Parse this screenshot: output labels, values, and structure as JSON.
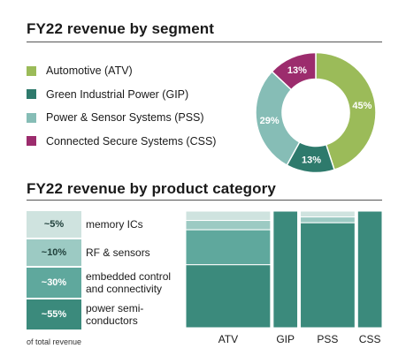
{
  "title_top": "FY22 revenue by segment",
  "title_bottom": "FY22 revenue by product category",
  "colors": {
    "ATV": "#9bbb59",
    "GIP": "#2e7a6c",
    "PSS": "#86bdb6",
    "CSS": "#9c2c6d"
  },
  "legend": [
    {
      "key": "ATV",
      "label": "Automotive (ATV)"
    },
    {
      "key": "GIP",
      "label": "Green Industrial Power (GIP)"
    },
    {
      "key": "PSS",
      "label": "Power & Sensor Systems (PSS)"
    },
    {
      "key": "CSS",
      "label": "Connected Secure Systems (CSS)"
    }
  ],
  "chart_data": [
    {
      "type": "pie",
      "title": "FY22 revenue by segment",
      "categories": [
        "ATV",
        "GIP",
        "PSS",
        "CSS"
      ],
      "values": [
        45,
        13,
        29,
        13
      ],
      "labels": [
        "45%",
        "13%",
        "29%",
        "13%"
      ]
    },
    {
      "type": "bar",
      "title": "FY22 revenue by product category",
      "stacked": true,
      "categories": [
        {
          "label": "~5%",
          "name": "memory ICs",
          "share": 5,
          "color": "#cfe3df"
        },
        {
          "label": "~10%",
          "name": "RF & sensors",
          "share": 10,
          "color": "#9ccac3"
        },
        {
          "label": "~30%",
          "name": "embedded control\nand connectivity",
          "share": 30,
          "color": "#5fa89d"
        },
        {
          "label": "~55%",
          "name": "power semi-\nconductors",
          "share": 55,
          "color": "#3b8a7c"
        }
      ],
      "segments": [
        "ATV",
        "GIP",
        "PSS",
        "CSS"
      ],
      "segment_widths": [
        45,
        13,
        29,
        13
      ],
      "segment_mix": [
        [
          8,
          8,
          30,
          54
        ],
        [
          0,
          0,
          0,
          100
        ],
        [
          5,
          5,
          0,
          90
        ],
        [
          0,
          0,
          0,
          100
        ]
      ],
      "note": "of total revenue"
    }
  ]
}
